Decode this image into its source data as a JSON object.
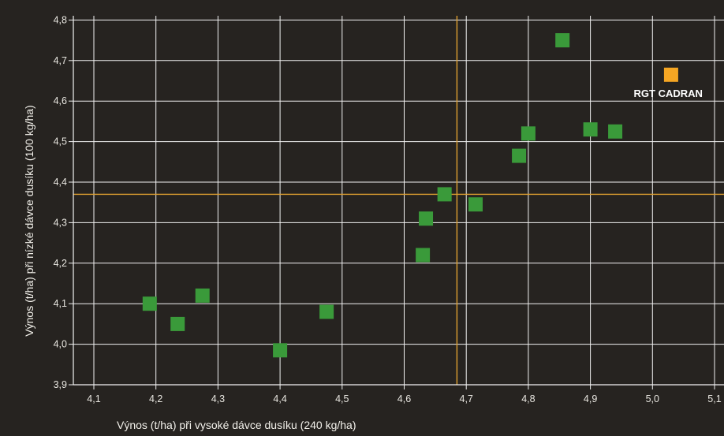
{
  "chart_data": {
    "type": "scatter",
    "xlabel": "Výnos (t/ha) při vysoké dávce dusíku (240 kg/ha)",
    "ylabel": "Výnos (t/ha) při nízké dávce dusíku (100 kg/ha)",
    "xlim": [
      4.06,
      5.14
    ],
    "ylim": [
      3.9,
      4.8
    ],
    "x_ticks": [
      "4,1",
      "4,2",
      "4,3",
      "4,4",
      "4,5",
      "4,6",
      "4,7",
      "4,8",
      "4,9",
      "5,0",
      "5,1"
    ],
    "y_ticks": [
      "3,9",
      "4,0",
      "4,1",
      "4,2",
      "4,3",
      "4,4",
      "4,5",
      "4,6",
      "4,7",
      "4,8"
    ],
    "grid": true,
    "reference_lines": {
      "x": 4.685,
      "y": 4.37,
      "color": "#e0a030"
    },
    "series": [
      {
        "color": "#3a9a3a",
        "points": [
          {
            "x": 4.19,
            "y": 4.1
          },
          {
            "x": 4.235,
            "y": 4.05
          },
          {
            "x": 4.275,
            "y": 4.12
          },
          {
            "x": 4.4,
            "y": 3.985
          },
          {
            "x": 4.475,
            "y": 4.08
          },
          {
            "x": 4.63,
            "y": 4.22
          },
          {
            "x": 4.635,
            "y": 4.31
          },
          {
            "x": 4.665,
            "y": 4.37
          },
          {
            "x": 4.715,
            "y": 4.345
          },
          {
            "x": 4.785,
            "y": 4.465
          },
          {
            "x": 4.8,
            "y": 4.52
          },
          {
            "x": 4.855,
            "y": 4.75
          },
          {
            "x": 4.9,
            "y": 4.53
          },
          {
            "x": 4.94,
            "y": 4.525
          }
        ]
      },
      {
        "color": "#f5a623",
        "points": [
          {
            "x": 5.03,
            "y": 4.665
          }
        ]
      }
    ],
    "annotations": [
      {
        "text": "RGT CADRAN",
        "x": 5.03,
        "y": 4.665
      }
    ]
  }
}
